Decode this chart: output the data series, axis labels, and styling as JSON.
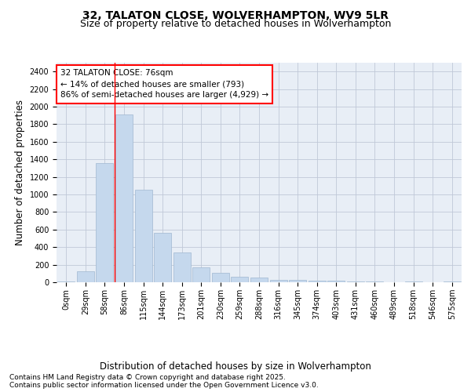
{
  "title1": "32, TALATON CLOSE, WOLVERHAMPTON, WV9 5LR",
  "title2": "Size of property relative to detached houses in Wolverhampton",
  "xlabel": "Distribution of detached houses by size in Wolverhampton",
  "ylabel": "Number of detached properties",
  "categories": [
    "0sqm",
    "29sqm",
    "58sqm",
    "86sqm",
    "115sqm",
    "144sqm",
    "173sqm",
    "201sqm",
    "230sqm",
    "259sqm",
    "288sqm",
    "316sqm",
    "345sqm",
    "374sqm",
    "403sqm",
    "431sqm",
    "460sqm",
    "489sqm",
    "518sqm",
    "546sqm",
    "575sqm"
  ],
  "values": [
    10,
    125,
    1360,
    1910,
    1055,
    560,
    335,
    170,
    110,
    60,
    55,
    30,
    25,
    20,
    15,
    5,
    5,
    2,
    12,
    2,
    10
  ],
  "bar_color": "#c5d8ed",
  "bar_edge_color": "#a0b8d0",
  "grid_color": "#c0c8d8",
  "background_color": "#e8eef6",
  "red_line_x": 2.5,
  "annotation_title": "32 TALATON CLOSE: 76sqm",
  "annotation_line1": "← 14% of detached houses are smaller (793)",
  "annotation_line2": "86% of semi-detached houses are larger (4,929) →",
  "ylim": [
    0,
    2500
  ],
  "yticks": [
    0,
    200,
    400,
    600,
    800,
    1000,
    1200,
    1400,
    1600,
    1800,
    2000,
    2200,
    2400
  ],
  "footnote1": "Contains HM Land Registry data © Crown copyright and database right 2025.",
  "footnote2": "Contains public sector information licensed under the Open Government Licence v3.0.",
  "title1_fontsize": 10,
  "title2_fontsize": 9,
  "axis_label_fontsize": 8.5,
  "tick_fontsize": 7,
  "annotation_fontsize": 7.5,
  "footnote_fontsize": 6.5
}
